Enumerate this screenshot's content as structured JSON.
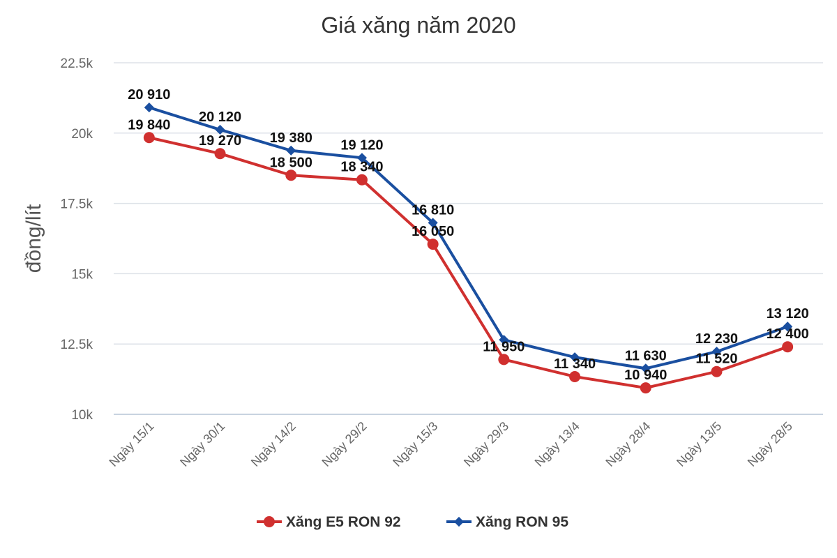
{
  "chart_data": {
    "type": "line",
    "title": "Giá xăng năm 2020",
    "xlabel": "",
    "ylabel": "đồng/lít",
    "ylim": [
      10000,
      22500
    ],
    "yticks": [
      10000,
      12500,
      15000,
      17500,
      20000,
      22500
    ],
    "ytick_labels": [
      "10k",
      "12.5k",
      "15k",
      "17.5k",
      "20k",
      "22.5k"
    ],
    "grid": true,
    "legend": "bottom",
    "categories": [
      "Ngày 15/1",
      "Ngày 30/1",
      "Ngày 14/2",
      "Ngày 29/2",
      "Ngày 15/3",
      "Ngày 29/3",
      "Ngày 13/4",
      "Ngày 28/4",
      "Ngày 13/5",
      "Ngày 28/5"
    ],
    "series": [
      {
        "name": "Xăng E5 RON 92",
        "color": "#d0302f",
        "marker": "circle",
        "values": [
          19840,
          19270,
          18500,
          18340,
          16050,
          11950,
          11340,
          10940,
          11520,
          12400
        ],
        "labels": [
          "19 840",
          "19 270",
          "18 500",
          "18 340",
          "16 050",
          "11 950",
          "11 340",
          "10 940",
          "11 520",
          "12 400"
        ]
      },
      {
        "name": "Xăng RON 95",
        "color": "#1a4fa0",
        "marker": "diamond",
        "values": [
          20910,
          20120,
          19380,
          19120,
          16810,
          12650,
          12030,
          11630,
          12230,
          13120
        ],
        "labels": [
          "20 910",
          "20 120",
          "19 380",
          "19 120",
          "16 810",
          null,
          null,
          "11 630",
          "12 230",
          "13 120"
        ]
      }
    ]
  }
}
